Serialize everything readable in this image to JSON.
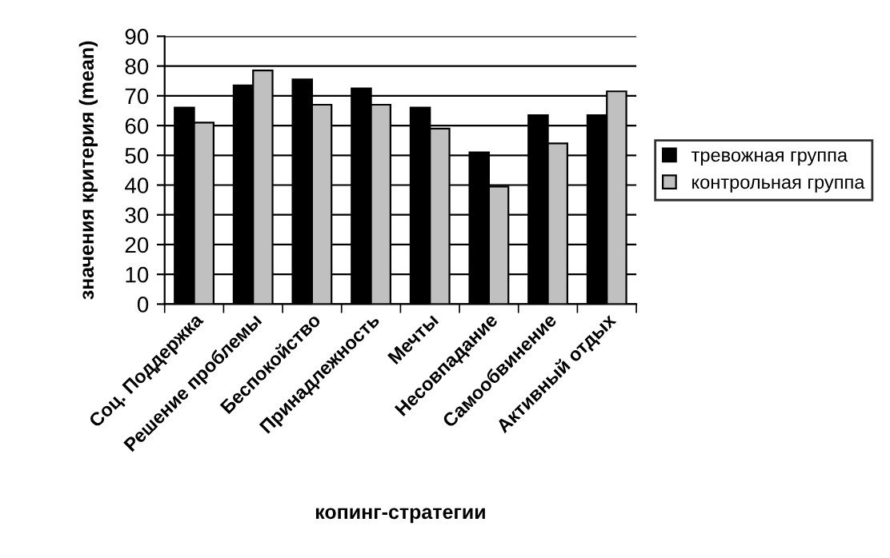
{
  "chart_data": {
    "type": "bar",
    "xlabel": "копинг-стратегии",
    "ylabel": "значения критерия (mean)",
    "categories": [
      "Соц. Поддержка",
      "Решение проблемы",
      "Беспокойство",
      "Принадлежность",
      "Мечты",
      "Несовпадание",
      "Самообвинение",
      "Активный отдых"
    ],
    "series": [
      {
        "name": "тревожная группа",
        "color": "#000000",
        "values": [
          66,
          73.5,
          75.5,
          72.5,
          66,
          51,
          63.5,
          63.5
        ]
      },
      {
        "name": "контрольная группа",
        "color": "#c0c0c0",
        "values": [
          61,
          78.5,
          67,
          67,
          59,
          39.5,
          54,
          71.5
        ]
      }
    ],
    "ylim": [
      0,
      90
    ],
    "yticks": [
      0,
      10,
      20,
      30,
      40,
      50,
      60,
      70,
      80,
      90
    ],
    "grid": "y",
    "legend": "right"
  }
}
